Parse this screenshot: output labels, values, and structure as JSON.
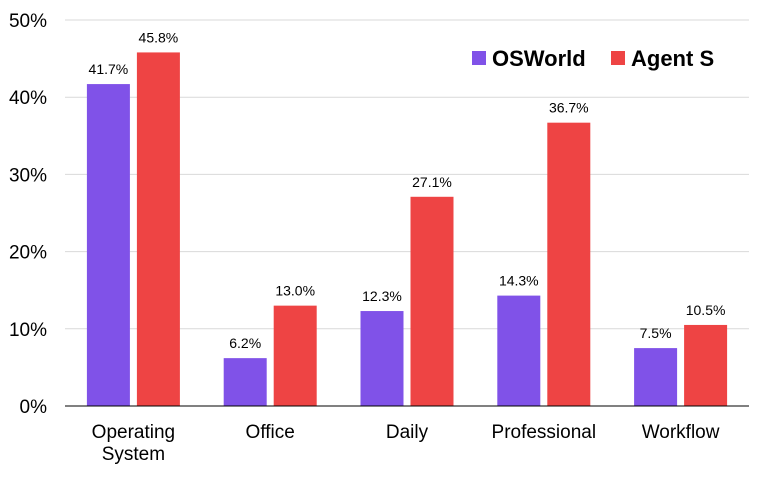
{
  "chart_data": {
    "type": "bar",
    "title": "",
    "xlabel": "",
    "ylabel": "",
    "categories": [
      [
        "Operating",
        "System"
      ],
      [
        "Office"
      ],
      [
        "Daily"
      ],
      [
        "Professional"
      ],
      [
        "Workflow"
      ]
    ],
    "series": [
      {
        "name": "OSWorld",
        "color": "#8052e8",
        "values": [
          41.7,
          6.2,
          12.3,
          14.3,
          7.5
        ],
        "labels": [
          "41.7%",
          "6.2%",
          "12.3%",
          "14.3%",
          "7.5%"
        ]
      },
      {
        "name": "Agent S",
        "color": "#ee4444",
        "values": [
          45.8,
          13.0,
          27.1,
          36.7,
          10.5
        ],
        "labels": [
          "45.8%",
          "13.0%",
          "27.1%",
          "36.7%",
          "10.5%"
        ]
      }
    ],
    "ylim": [
      0,
      50
    ],
    "yticks": [
      0,
      10,
      20,
      30,
      40,
      50
    ],
    "ytick_labels": [
      "0%",
      "10%",
      "20%",
      "30%",
      "40%",
      "50%"
    ],
    "grid": true,
    "legend_position": "top-right"
  }
}
